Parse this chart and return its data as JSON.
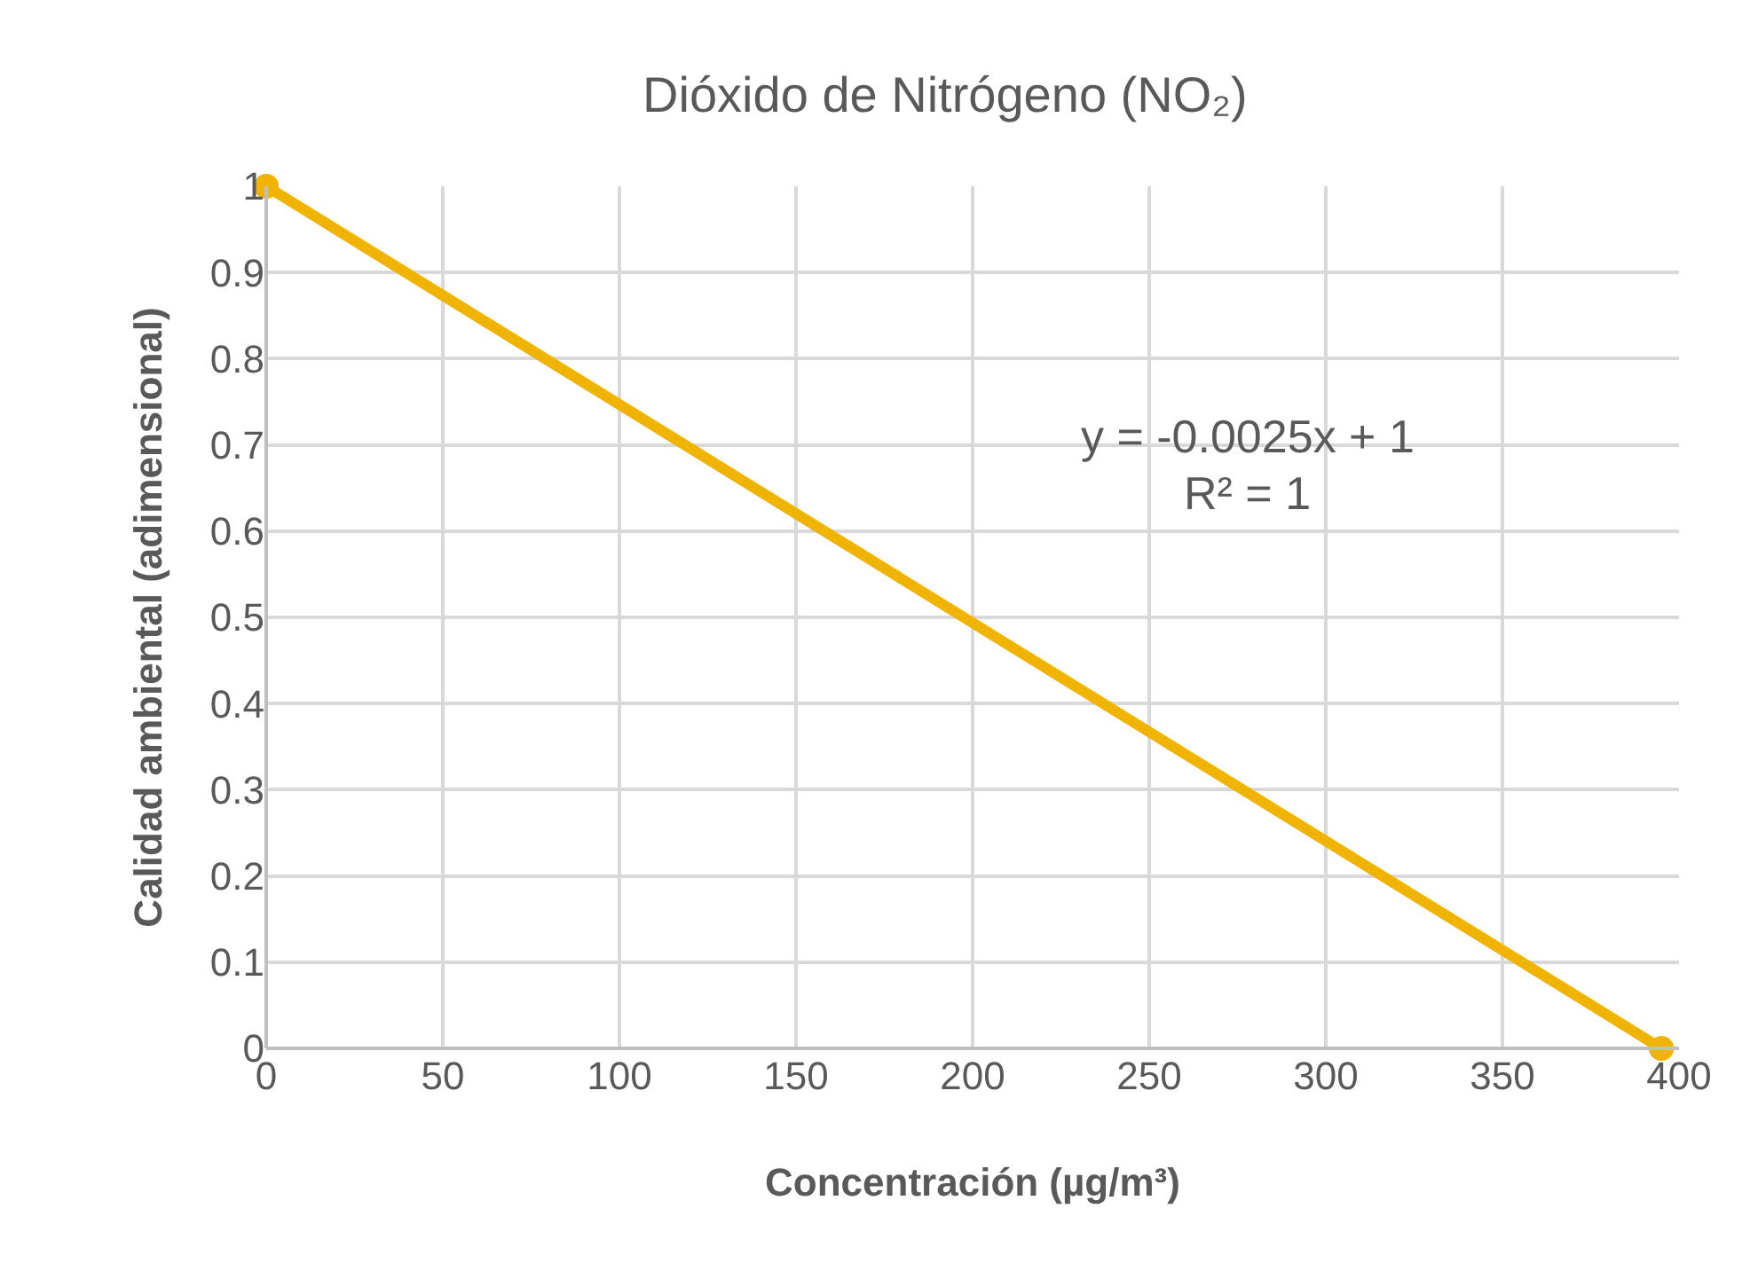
{
  "chart_data": {
    "type": "line",
    "title": "Dióxido de Nitrógeno (NO₂)",
    "xlabel": "Concentración (µg/m³)",
    "ylabel": "Calidad ambiental (adimensional)",
    "x": [
      0,
      395
    ],
    "series": [
      {
        "color": "#f0b400",
        "values": [
          1,
          0
        ]
      }
    ],
    "annotations": [
      "y = -0.0025x + 1",
      "R² = 1"
    ],
    "xlim": [
      0,
      400
    ],
    "xticks": [
      0,
      50,
      100,
      150,
      200,
      250,
      300,
      350,
      400
    ],
    "ylim": [
      0,
      1
    ],
    "yticks": [
      0,
      0.1,
      0.2,
      0.3,
      0.4,
      0.5,
      0.6,
      0.7,
      0.8,
      0.9,
      1
    ],
    "grid": true,
    "marker": "circle",
    "line_style": "solid"
  }
}
